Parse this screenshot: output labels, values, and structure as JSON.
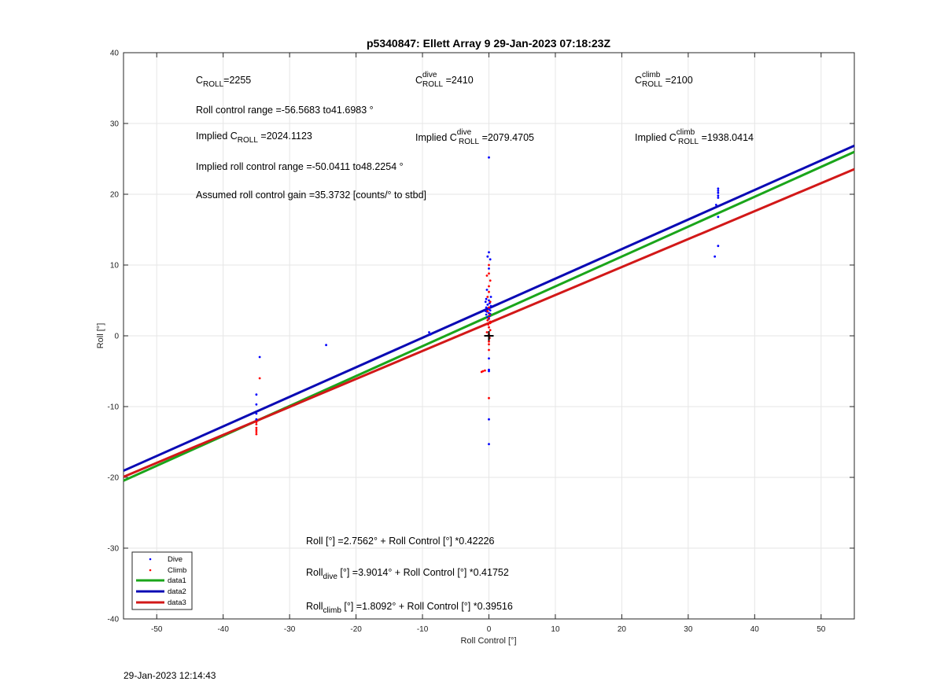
{
  "timestamp": "29-Jan-2023 12:14:43",
  "chart_data": {
    "type": "scatter",
    "title": "p5340847: Ellett Array 9 29-Jan-2023 07:18:23Z",
    "xlabel": "Roll Control [°]",
    "ylabel": "Roll [°]",
    "xlim": [
      -55,
      55
    ],
    "ylim": [
      -40,
      40
    ],
    "xticks": [
      -50,
      -40,
      -30,
      -20,
      -10,
      0,
      10,
      20,
      30,
      40,
      50
    ],
    "yticks": [
      -40,
      -30,
      -20,
      -10,
      0,
      10,
      20,
      30,
      40
    ],
    "grid": true,
    "legend_placement": "bottom-left",
    "colors": {
      "Dive": "#0000ff",
      "Climb": "#ff0000",
      "data1": "#1aa51a",
      "data2": "#0a0ab4",
      "data3": "#d21818"
    },
    "series": [
      {
        "name": "Dive",
        "kind": "points",
        "points": [
          [
            -34.5,
            -3
          ],
          [
            -35,
            -8.3
          ],
          [
            -35,
            -9.7
          ],
          [
            -35,
            -11
          ],
          [
            -35,
            -11.8
          ],
          [
            -24.5,
            -1.3
          ],
          [
            -9,
            0.5
          ],
          [
            -8.8,
            0.2
          ],
          [
            0,
            25.2
          ],
          [
            0,
            11.8
          ],
          [
            -0.2,
            11.2
          ],
          [
            0.2,
            10.8
          ],
          [
            0,
            9.5
          ],
          [
            -0.3,
            6.5
          ],
          [
            0.3,
            5.5
          ],
          [
            -0.4,
            5.2
          ],
          [
            0,
            5
          ],
          [
            -0.5,
            4.8
          ],
          [
            0.1,
            4.6
          ],
          [
            -0.2,
            4.4
          ],
          [
            0.3,
            4.2
          ],
          [
            -0.4,
            4
          ],
          [
            0,
            3.8
          ],
          [
            0.2,
            3.6
          ],
          [
            -0.3,
            3.4
          ],
          [
            0,
            3.2
          ],
          [
            -0.4,
            3
          ],
          [
            0.1,
            2.8
          ],
          [
            -0.2,
            2.6
          ],
          [
            0,
            2.4
          ],
          [
            0.2,
            3.1
          ],
          [
            -0.5,
            3.5
          ],
          [
            0,
            -3.2
          ],
          [
            0,
            -4.8
          ],
          [
            0,
            -5
          ],
          [
            0,
            -11.8
          ],
          [
            0,
            -15.3
          ],
          [
            34.2,
            18.5
          ],
          [
            34.5,
            20.8
          ],
          [
            34.5,
            20.5
          ],
          [
            34.5,
            20.2
          ],
          [
            34.5,
            19.8
          ],
          [
            34.5,
            19.5
          ],
          [
            34.5,
            16.8
          ],
          [
            34.5,
            12.7
          ],
          [
            34,
            11.2
          ]
        ]
      },
      {
        "name": "Climb",
        "kind": "points",
        "points": [
          [
            -34.5,
            -6
          ],
          [
            -35,
            -12.5
          ],
          [
            -35,
            -13
          ],
          [
            -35,
            -13.3
          ],
          [
            -35,
            -13.6
          ],
          [
            -35,
            -13.9
          ],
          [
            -35,
            -12.2
          ],
          [
            0,
            10
          ],
          [
            0,
            8.8
          ],
          [
            -0.3,
            8.5
          ],
          [
            0.2,
            7.8
          ],
          [
            0,
            7
          ],
          [
            0,
            6.2
          ],
          [
            -0.2,
            5.5
          ],
          [
            0.2,
            4.8
          ],
          [
            0,
            4
          ],
          [
            -0.2,
            3.5
          ],
          [
            0.1,
            3
          ],
          [
            0,
            2.5
          ],
          [
            0.2,
            2
          ],
          [
            -0.1,
            1.6
          ],
          [
            0,
            1.2
          ],
          [
            0.2,
            0.8
          ],
          [
            -0.3,
            0.5
          ],
          [
            0,
            0.2
          ],
          [
            0.1,
            -0.3
          ],
          [
            0,
            -0.8
          ],
          [
            0,
            -1.2
          ],
          [
            0.2,
            1.8
          ],
          [
            -0.2,
            2.2
          ],
          [
            0,
            -2
          ],
          [
            -0.6,
            -4.9
          ],
          [
            -0.9,
            -5
          ],
          [
            -1.1,
            -5.1
          ],
          [
            0,
            -8.8
          ]
        ]
      },
      {
        "name": "data1",
        "kind": "line",
        "intercept": 2.7562,
        "slope": 0.42226
      },
      {
        "name": "data2",
        "kind": "line",
        "intercept": 3.9014,
        "slope": 0.41752
      },
      {
        "name": "data3",
        "kind": "line",
        "intercept": 1.8092,
        "slope": 0.39516
      }
    ],
    "marker": {
      "x": 0,
      "y": 0,
      "symbol": "+"
    },
    "annotations": {
      "c_roll": "C",
      "c_roll_sub": "ROLL",
      "c_roll_val": "=2255",
      "c_dive": "C",
      "c_dive_sup": "dive",
      "c_dive_sub": "ROLL",
      "c_dive_val": " =2410",
      "c_climb": "C",
      "c_climb_sup": "climb",
      "c_climb_sub": "ROLL",
      "c_climb_val": " =2100",
      "range": "Roll control range =-56.5683 to41.6983 °",
      "implied_prefix": "Implied C",
      "implied_sub": "ROLL",
      "implied_val": " =2024.1123",
      "implied_dive_prefix": "Implied C",
      "implied_dive_sup": "dive",
      "implied_dive_sub": "ROLL",
      "implied_dive_val": " =2079.4705",
      "implied_climb_prefix": "Implied C",
      "implied_climb_sup": "climb",
      "implied_climb_sub": "ROLL",
      "implied_climb_val": " =1938.0414",
      "implied_range": "Implied roll control range =-50.0411 to48.2254 °",
      "gain": "Assumed roll control gain =35.3732 [counts/° to stbd]",
      "eq_all": "Roll [°] =2.7562° + Roll Control [°] *0.42226",
      "eq_dive_prefix": "Roll",
      "eq_dive_sub": "dive",
      "eq_dive_rest": " [°] =3.9014° + Roll Control [°] *0.41752",
      "eq_climb_prefix": "Roll",
      "eq_climb_sub": "climb",
      "eq_climb_rest": " [°] =1.8092° + Roll Control [°] *0.39516"
    },
    "legend": [
      "Dive",
      "Climb",
      "data1",
      "data2",
      "data3"
    ]
  }
}
